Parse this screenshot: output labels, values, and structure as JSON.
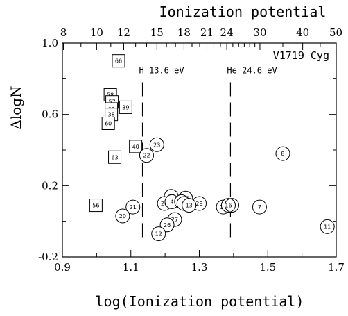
{
  "chart_data": {
    "type": "scatter",
    "title": "V1719 Cyg",
    "xlabel": "log(Ionization potential)",
    "ylabel": "ΔlogN",
    "top_xlabel": "Ionization potential",
    "xlim": [
      0.9,
      1.7
    ],
    "ylim": [
      -0.2,
      1.0
    ],
    "x_major_ticks": [
      "0.9",
      "1.1",
      "1.3",
      "1.5",
      "1.7"
    ],
    "x_minor_ticks": [
      1.0,
      1.2,
      1.4,
      1.6
    ],
    "y_major_ticks": [
      "-0.2",
      "0.2",
      "0.6",
      "1.0"
    ],
    "y_minor_ticks": [
      0.0,
      0.4,
      0.8
    ],
    "top_ticks": [
      "8",
      "10",
      "12",
      "15",
      "18",
      "21",
      "24",
      "30",
      "40",
      "50"
    ],
    "top_minor_ticks": [
      9,
      11,
      13,
      14,
      16,
      17,
      19,
      20,
      22,
      23,
      25,
      26,
      27,
      28,
      29,
      35,
      45
    ],
    "annotations": [
      {
        "text": "H  13.6  eV",
        "x": 1.134
      },
      {
        "text": "He  24.6  eV",
        "x": 1.391
      }
    ],
    "series": [
      {
        "marker": "square",
        "points": [
          {
            "label": "66",
            "x": 1.064,
            "y": 0.9
          },
          {
            "label": "58",
            "x": 1.04,
            "y": 0.71
          },
          {
            "label": "57",
            "x": 1.045,
            "y": 0.67
          },
          {
            "label": "39",
            "x": 1.085,
            "y": 0.64
          },
          {
            "label": "62",
            "x": 1.043,
            "y": 0.63
          },
          {
            "label": "38",
            "x": 1.043,
            "y": 0.6
          },
          {
            "label": "60",
            "x": 1.034,
            "y": 0.55
          },
          {
            "label": "40",
            "x": 1.114,
            "y": 0.42
          },
          {
            "label": "63",
            "x": 1.053,
            "y": 0.36
          },
          {
            "label": "56",
            "x": 0.998,
            "y": 0.09
          }
        ]
      },
      {
        "marker": "circle",
        "points": [
          {
            "label": "23",
            "x": 1.176,
            "y": 0.43
          },
          {
            "label": "22",
            "x": 1.146,
            "y": 0.37
          },
          {
            "label": "8",
            "x": 1.544,
            "y": 0.38
          },
          {
            "label": "24",
            "x": 1.218,
            "y": 0.14
          },
          {
            "label": "25",
            "x": 1.26,
            "y": 0.13
          },
          {
            "label": "29",
            "x": 1.3,
            "y": 0.1
          },
          {
            "label": "20",
            "x": 1.198,
            "y": 0.1
          },
          {
            "label": "4",
            "x": 1.22,
            "y": 0.11
          },
          {
            "label": "5",
            "x": 1.248,
            "y": 0.11
          },
          {
            "label": "3",
            "x": 1.255,
            "y": 0.1
          },
          {
            "label": "13",
            "x": 1.27,
            "y": 0.09
          },
          {
            "label": "21",
            "x": 1.106,
            "y": 0.08
          },
          {
            "label": "16",
            "x": 1.37,
            "y": 0.08
          },
          {
            "label": "7",
            "x": 1.476,
            "y": 0.08
          },
          {
            "label": "20",
            "x": 1.076,
            "y": 0.03
          },
          {
            "label": "27",
            "x": 1.228,
            "y": 0.01
          },
          {
            "label": "26",
            "x": 1.206,
            "y": -0.02
          },
          {
            "label": "11",
            "x": 1.674,
            "y": -0.03
          },
          {
            "label": "12",
            "x": 1.181,
            "y": -0.07
          }
        ]
      },
      {
        "marker": "circle-double",
        "points": [
          {
            "label": "16",
            "x": 1.385,
            "y": 0.09
          }
        ]
      }
    ]
  }
}
